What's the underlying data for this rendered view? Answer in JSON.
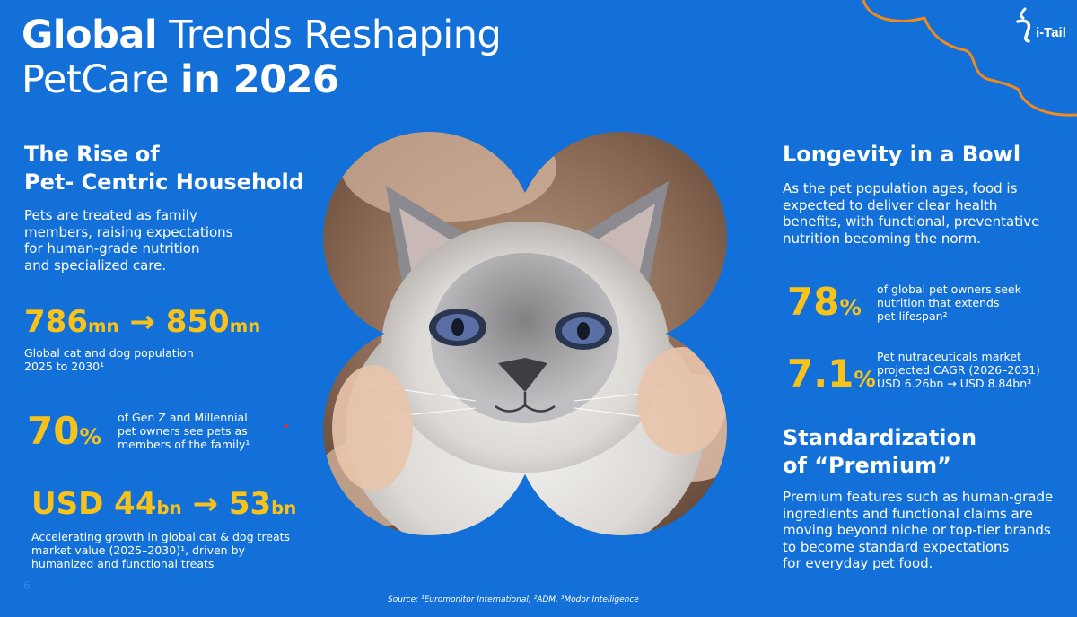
{
  "header": {
    "title_line1_bold": "Global",
    "title_line1_light": "Trends Reshaping",
    "title_line2_light": "PetCare",
    "title_line2_bold": "in 2026"
  },
  "logo": {
    "text": "i-Tail",
    "icon": "itail-logo-icon"
  },
  "left": {
    "rise_heading_line1": "The Rise of",
    "rise_heading_line2": "Pet- Centric Household",
    "rise_body": [
      "Pets are treated as family",
      "members, raising expectations",
      "for human-grade nutrition",
      "and specialized care."
    ],
    "stat1": {
      "from": "786",
      "from_unit": "mn",
      "arrow": "→",
      "to": "850",
      "to_unit": "mn",
      "caption": [
        "Global cat and dog population",
        "2025 to 2030¹"
      ]
    },
    "stat2": {
      "value": "70",
      "unit": "%",
      "caption": [
        "of Gen Z and Millennial",
        "pet owners see pets as",
        "members of the family¹"
      ]
    },
    "stat3": {
      "prefix": "USD",
      "from": "44",
      "from_unit": "bn",
      "arrow": "→",
      "to": "53",
      "to_unit": "bn",
      "caption": [
        "Accelerating growth in global cat & dog treats",
        "market value (2025–2030)¹, driven by",
        "humanized and functional treats"
      ]
    },
    "page_number": "6"
  },
  "right": {
    "longevity_heading": "Longevity in a Bowl",
    "longevity_body": [
      "As the pet population ages, food is",
      "expected to deliver clear health",
      "benefits, with functional, preventative",
      "nutrition becoming the norm."
    ],
    "stat4": {
      "value": "78",
      "unit": "%",
      "caption": [
        "of global pet owners seek",
        "nutrition that extends",
        "pet lifespan²"
      ]
    },
    "stat5": {
      "value": "7.1",
      "unit": "%",
      "caption": [
        "Pet nutraceuticals market",
        "projected CAGR (2026–2031)",
        "USD 6.26bn → USD 8.84bn³"
      ]
    },
    "premium_heading_line1": "Standardization",
    "premium_heading_line2": "of “Premium”",
    "premium_body": [
      "Premium features such as human-grade",
      "ingredients and functional claims are",
      "moving beyond niche or top-tier brands",
      "to become standard expectations",
      "for everyday pet food."
    ]
  },
  "center": {
    "image": "cat-photo"
  },
  "footer": {
    "source": "Source: ¹Euromonitor International, ²ADM, ³Modor Intelligence"
  },
  "colors": {
    "background": "#1470d9",
    "accent_yellow": "#f7c31b",
    "accent_orange": "#f08a1c"
  }
}
